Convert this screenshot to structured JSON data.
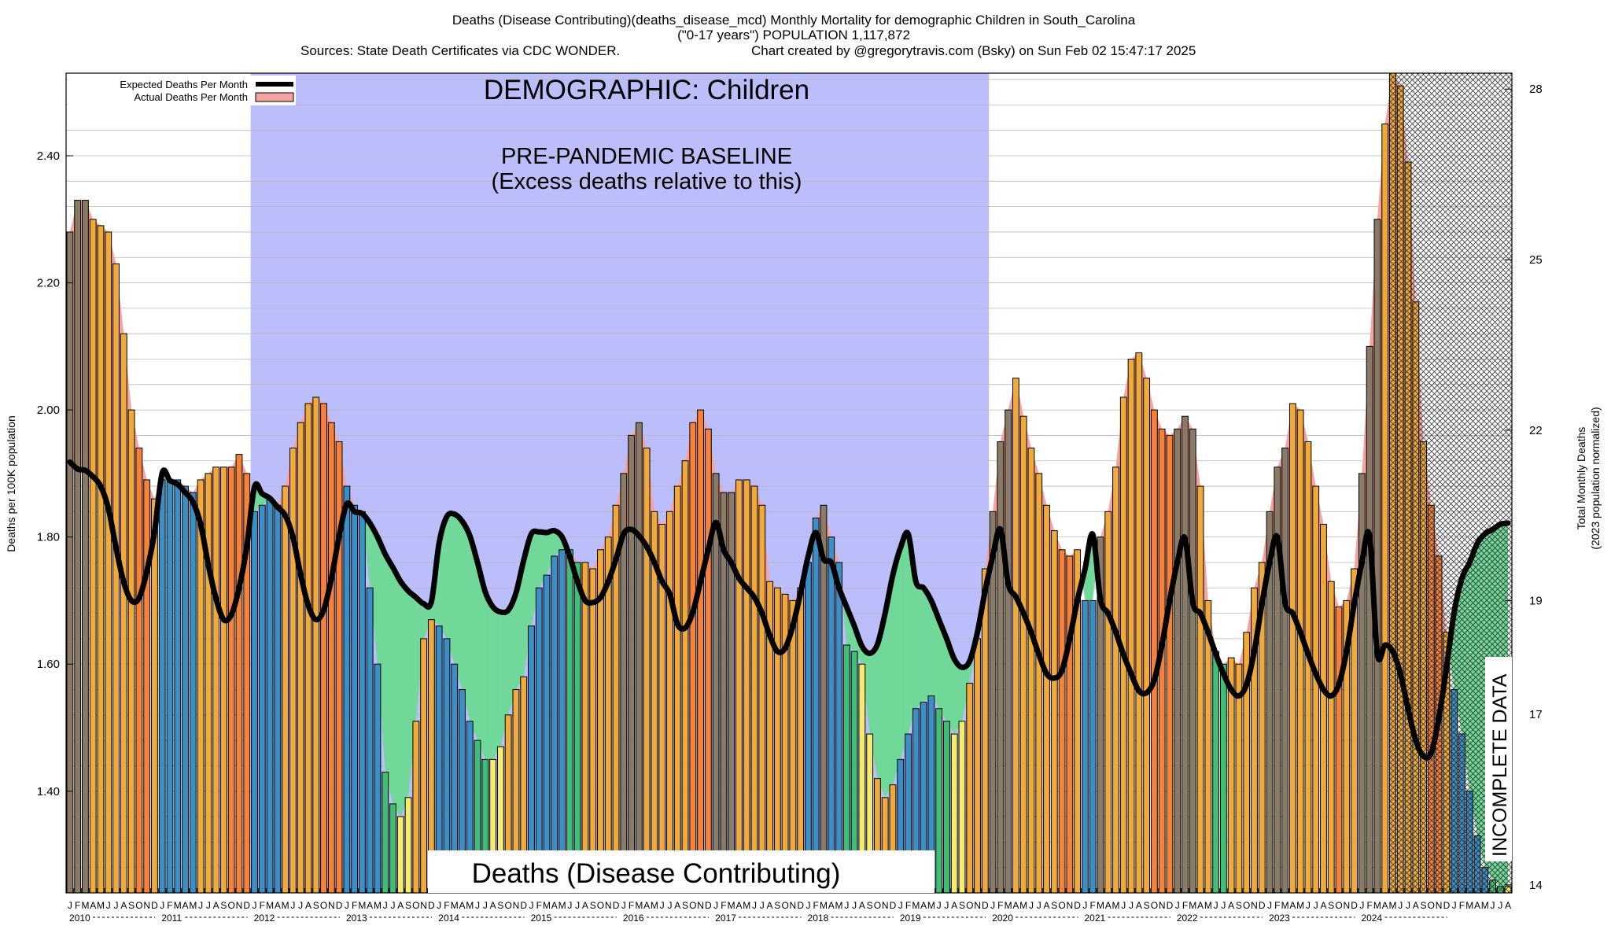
{
  "chart_data": {
    "type": "bar",
    "title": "Deaths (Disease Contributing)(deaths_disease_mcd) Monthly Mortality for demographic Children in South_Carolina",
    "subtitle": "(\"0-17 years\") POPULATION 1,117,872",
    "sources": "Sources: State Death Certificates via CDC WONDER.",
    "credit": "Chart created by @gregorytravis.com (Bsky) on Sun Feb 02 15:47:17 2025",
    "ylabel": "Deaths per 100K population",
    "y2label": "Total Monthly Deaths",
    "y2label_sub": "(2023 population normalized)",
    "ylim": [
      1.24,
      2.53
    ],
    "y2lim": [
      13.86,
      28.28
    ],
    "yticks": [
      1.4,
      1.6,
      1.8,
      2.0,
      2.2,
      2.4
    ],
    "ytick_labels": [
      "1.40",
      "1.60",
      "1.80",
      "2.00",
      "2.20",
      "2.40"
    ],
    "y2ticks": [
      14,
      17,
      19,
      22,
      25,
      28
    ],
    "y2tick_labels": [
      "14",
      "17",
      "19",
      "22",
      "25",
      "28"
    ],
    "month_letters": [
      "J",
      "F",
      "M",
      "A",
      "M",
      "J",
      "J",
      "A",
      "S",
      "O",
      "N",
      "D"
    ],
    "years": [
      "2010",
      "2011",
      "2012",
      "2013",
      "2014",
      "2015",
      "2016",
      "2017",
      "2018",
      "2019",
      "2020",
      "2021",
      "2022",
      "2023",
      "2024"
    ],
    "legend": {
      "position": "top-left",
      "entries": [
        {
          "name": "Expected Deaths Per Month",
          "color": "#000000"
        },
        {
          "name": "Actual Deaths Per Month",
          "color": "#f4a3a0"
        }
      ]
    },
    "annotations": {
      "demographic": "DEMOGRAPHIC: Children",
      "baseline_line1": "PRE-PANDEMIC BASELINE",
      "baseline_line2": "(Excess deaths relative to this)",
      "metric": "Deaths (Disease Contributing)",
      "incomplete": "INCOMPLETE DATA"
    },
    "baseline_region": {
      "start_month_index": 24,
      "end_month_index": 119
    },
    "incomplete_region": {
      "start_month_index": 172,
      "end_month_index": 179
    },
    "colors": {
      "baseline_fill": "#bcbdfb",
      "deficit_fill": "#70d898",
      "excess_fill": "#f4a3a0",
      "expected_line": "#000000",
      "bar_low": "#f4ec70",
      "bar_mid": "#efaa3b",
      "bar_high": "#f5823a",
      "bar_cool": "#3c8fc6",
      "bar_green": "#3fbf75",
      "bar_gray": "#8a7b66"
    },
    "series": [
      {
        "name": "Actual Deaths Per Month",
        "values": [
          2.28,
          2.33,
          2.33,
          2.3,
          2.29,
          2.28,
          2.23,
          2.12,
          2.0,
          1.94,
          1.89,
          1.86,
          1.89,
          1.89,
          1.89,
          1.88,
          1.87,
          1.89,
          1.9,
          1.91,
          1.91,
          1.91,
          1.93,
          1.9,
          1.84,
          1.85,
          1.86,
          1.85,
          1.88,
          1.94,
          1.98,
          2.01,
          2.02,
          2.01,
          1.98,
          1.95,
          1.88,
          1.85,
          1.84,
          1.72,
          1.6,
          1.43,
          1.38,
          1.36,
          1.39,
          1.51,
          1.64,
          1.67,
          1.66,
          1.64,
          1.6,
          1.56,
          1.51,
          1.48,
          1.45,
          1.45,
          1.47,
          1.52,
          1.56,
          1.58,
          1.66,
          1.72,
          1.74,
          1.77,
          1.78,
          1.78,
          1.76,
          1.76,
          1.75,
          1.78,
          1.8,
          1.85,
          1.9,
          1.96,
          1.98,
          1.94,
          1.84,
          1.82,
          1.84,
          1.88,
          1.92,
          1.98,
          2.0,
          1.97,
          1.9,
          1.87,
          1.87,
          1.89,
          1.89,
          1.88,
          1.85,
          1.73,
          1.72,
          1.71,
          1.7,
          1.72,
          1.76,
          1.83,
          1.85,
          1.8,
          1.76,
          1.63,
          1.62,
          1.6,
          1.49,
          1.42,
          1.39,
          1.41,
          1.45,
          1.49,
          1.53,
          1.54,
          1.55,
          1.53,
          1.51,
          1.49,
          1.51,
          1.57,
          1.64,
          1.75,
          1.84,
          1.95,
          2.0,
          2.05,
          1.99,
          1.94,
          1.9,
          1.85,
          1.81,
          1.78,
          1.77,
          1.78,
          1.7,
          1.7,
          1.8,
          1.84,
          1.91,
          2.02,
          2.08,
          2.09,
          2.05,
          2.0,
          1.97,
          1.96,
          1.97,
          1.99,
          1.97,
          1.88,
          1.7,
          1.62,
          1.6,
          1.61,
          1.6,
          1.65,
          1.72,
          1.76,
          1.84,
          1.91,
          1.94,
          2.01,
          2.0,
          1.95,
          1.88,
          1.82,
          1.73,
          1.69,
          1.7,
          1.75,
          1.9,
          2.1,
          2.3,
          2.45,
          2.54,
          2.51,
          2.39,
          2.17,
          1.95,
          1.85,
          1.77,
          1.65,
          1.56,
          1.49,
          1.4,
          1.33,
          1.28,
          1.26,
          1.25,
          1.25
        ]
      },
      {
        "name": "Expected Deaths Per Month",
        "values": [
          1.918,
          1.907,
          1.905,
          1.895,
          1.88,
          1.845,
          1.783,
          1.729,
          1.7,
          1.704,
          1.746,
          1.808,
          1.901,
          1.889,
          1.883,
          1.87,
          1.855,
          1.82,
          1.756,
          1.703,
          1.67,
          1.678,
          1.72,
          1.785,
          1.879,
          1.868,
          1.861,
          1.847,
          1.834,
          1.8,
          1.741,
          1.692,
          1.67,
          1.685,
          1.735,
          1.801,
          1.852,
          1.84,
          1.837,
          1.822,
          1.8,
          1.773,
          1.752,
          1.73,
          1.715,
          1.705,
          1.695,
          1.698,
          1.79,
          1.832,
          1.836,
          1.825,
          1.802,
          1.76,
          1.714,
          1.69,
          1.682,
          1.685,
          1.712,
          1.763,
          1.805,
          1.808,
          1.807,
          1.81,
          1.8,
          1.769,
          1.73,
          1.7,
          1.697,
          1.705,
          1.73,
          1.765,
          1.805,
          1.812,
          1.802,
          1.785,
          1.76,
          1.73,
          1.71,
          1.663,
          1.657,
          1.682,
          1.73,
          1.78,
          1.823,
          1.78,
          1.76,
          1.735,
          1.72,
          1.705,
          1.68,
          1.645,
          1.62,
          1.625,
          1.66,
          1.712,
          1.77,
          1.807,
          1.765,
          1.76,
          1.72,
          1.69,
          1.66,
          1.628,
          1.617,
          1.631,
          1.68,
          1.74,
          1.783,
          1.805,
          1.73,
          1.72,
          1.7,
          1.67,
          1.64,
          1.608,
          1.595,
          1.605,
          1.65,
          1.715,
          1.77,
          1.812,
          1.727,
          1.706,
          1.68,
          1.65,
          1.615,
          1.585,
          1.578,
          1.59,
          1.64,
          1.7,
          1.75,
          1.804,
          1.702,
          1.68,
          1.65,
          1.615,
          1.585,
          1.558,
          1.555,
          1.575,
          1.63,
          1.7,
          1.76,
          1.798,
          1.697,
          1.68,
          1.65,
          1.616,
          1.585,
          1.56,
          1.55,
          1.568,
          1.62,
          1.695,
          1.76,
          1.8,
          1.697,
          1.68,
          1.65,
          1.616,
          1.585,
          1.56,
          1.55,
          1.568,
          1.62,
          1.695,
          1.76,
          1.802,
          1.617,
          1.63,
          1.62,
          1.585,
          1.53,
          1.48,
          1.455,
          1.46,
          1.515,
          1.595,
          1.682,
          1.735,
          1.76,
          1.79,
          1.805,
          1.812,
          1.82,
          1.822
        ]
      }
    ]
  }
}
